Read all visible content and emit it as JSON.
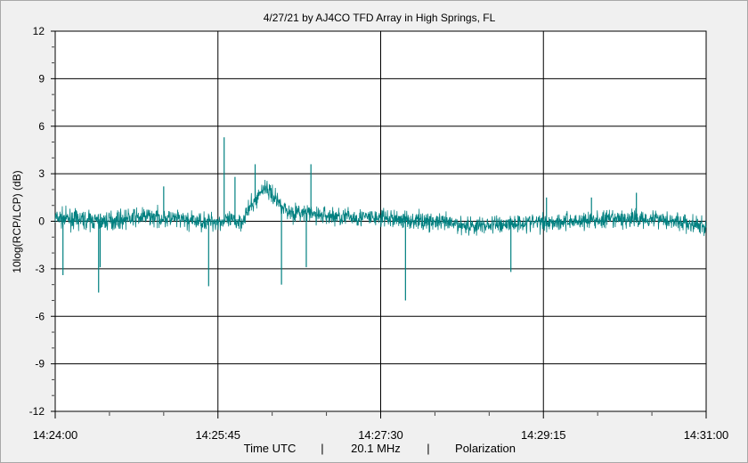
{
  "chart_data": {
    "type": "line",
    "title": "4/27/21  by  AJ4CO TFD Array  in  High Springs, FL",
    "ylabel": "10log(RCP/LCP) (dB)",
    "xlabel_parts": [
      "Time UTC",
      "|",
      "20.1 MHz",
      "|",
      "Polarization"
    ],
    "x_range": [
      "14:24:00",
      "14:31:00"
    ],
    "ylim": [
      -12,
      12
    ],
    "y_ticks": [
      12,
      9,
      6,
      3,
      0,
      -3,
      -6,
      -9,
      -12
    ],
    "y_tick_labels": [
      "12",
      "9",
      "6",
      "3",
      "0",
      "-3",
      "-6",
      "-9",
      "-12"
    ],
    "x_tick_labels": [
      "14:24:00",
      "14:25:45",
      "14:27:30",
      "14:29:15",
      "14:31:00"
    ],
    "grid": true,
    "series": [
      {
        "color": "#008080",
        "baseline_db": [
          [
            "14:24:00",
            0.2
          ],
          [
            "14:24:30",
            0.0
          ],
          [
            "14:25:00",
            0.3
          ],
          [
            "14:25:30",
            0.0
          ],
          [
            "14:25:45",
            0.0
          ],
          [
            "14:26:00",
            0.0
          ],
          [
            "14:26:15",
            2.2
          ],
          [
            "14:26:30",
            0.6
          ],
          [
            "14:27:00",
            0.3
          ],
          [
            "14:27:30",
            0.2
          ],
          [
            "14:28:00",
            0.0
          ],
          [
            "14:28:30",
            -0.3
          ],
          [
            "14:29:00",
            -0.1
          ],
          [
            "14:29:30",
            0.0
          ],
          [
            "14:30:00",
            0.1
          ],
          [
            "14:30:30",
            0.2
          ],
          [
            "14:31:00",
            -0.4
          ]
        ],
        "spikes_db": [
          [
            "14:24:05",
            -3.4
          ],
          [
            "14:24:29",
            -2.9
          ],
          [
            "14:24:28",
            -4.5
          ],
          [
            "14:25:10",
            2.2
          ],
          [
            "14:25:39",
            -4.1
          ],
          [
            "14:25:49",
            5.3
          ],
          [
            "14:25:56",
            2.8
          ],
          [
            "14:26:09",
            3.6
          ],
          [
            "14:26:26",
            -4.0
          ],
          [
            "14:26:42",
            -2.9
          ],
          [
            "14:26:45",
            3.6
          ],
          [
            "14:27:46",
            -5.0
          ],
          [
            "14:28:54",
            -3.2
          ],
          [
            "14:29:17",
            1.5
          ],
          [
            "14:29:46",
            1.5
          ],
          [
            "14:30:15",
            1.8
          ]
        ]
      }
    ]
  }
}
